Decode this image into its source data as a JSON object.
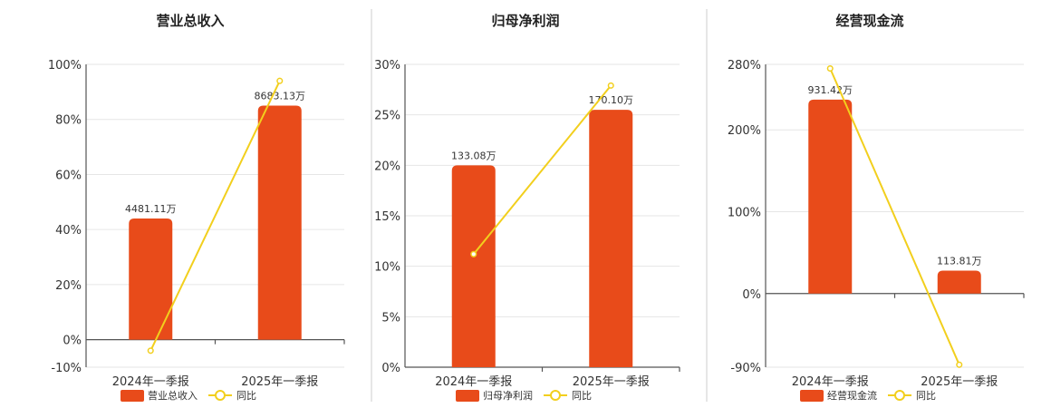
{
  "chart_data": [
    {
      "type": "bar",
      "title": "营业总收入",
      "categories": [
        "2024年一季报",
        "2025年一季报"
      ],
      "ylim": [
        -10,
        100
      ],
      "yticks": [
        -10,
        0,
        20,
        40,
        60,
        80,
        100
      ],
      "ytick_labels": [
        "-10%",
        "0%",
        "20%",
        "40%",
        "60%",
        "80%",
        "100%"
      ],
      "series": [
        {
          "name": "营业总收入",
          "kind": "bar",
          "values": [
            44,
            85
          ],
          "labels": [
            "4481.11万",
            "8683.13万"
          ]
        },
        {
          "name": "同比",
          "kind": "line",
          "values": [
            -4,
            94
          ]
        }
      ],
      "legend": "bottom",
      "grid": true
    },
    {
      "type": "bar",
      "title": "归母净利润",
      "categories": [
        "2024年一季报",
        "2025年一季报"
      ],
      "ylim": [
        0,
        30
      ],
      "yticks": [
        0,
        5,
        10,
        15,
        20,
        25,
        30
      ],
      "ytick_labels": [
        "0%",
        "5%",
        "10%",
        "15%",
        "20%",
        "25%",
        "30%"
      ],
      "series": [
        {
          "name": "归母净利润",
          "kind": "bar",
          "values": [
            20,
            25.5
          ],
          "labels": [
            "133.08万",
            "170.10万"
          ]
        },
        {
          "name": "同比",
          "kind": "line",
          "values": [
            11.2,
            27.9
          ]
        }
      ],
      "legend": "bottom",
      "grid": true
    },
    {
      "type": "bar",
      "title": "经营现金流",
      "categories": [
        "2024年一季报",
        "2025年一季报"
      ],
      "ylim": [
        -90,
        280
      ],
      "yticks": [
        -90,
        0,
        100,
        200,
        280
      ],
      "ytick_labels": [
        "-90%",
        "0%",
        "100%",
        "200%",
        "280%"
      ],
      "series": [
        {
          "name": "经营现金流",
          "kind": "bar",
          "values": [
            237,
            28
          ],
          "labels": [
            "931.42万",
            "113.81万"
          ]
        },
        {
          "name": "同比",
          "kind": "line",
          "values": [
            275,
            -87
          ]
        }
      ],
      "legend": "bottom",
      "grid": true
    }
  ],
  "colors": {
    "bar": "#e84b1a",
    "line": "#f2cf1d",
    "grid": "#e6e6e6",
    "axis": "#555555",
    "separator": "#cccccc"
  }
}
